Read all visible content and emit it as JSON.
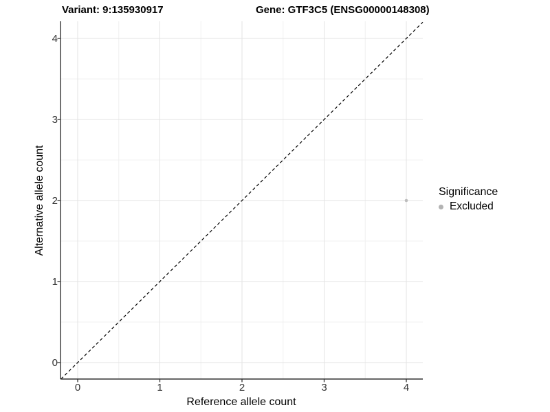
{
  "figure": {
    "title_variant": "Variant: 9:135930917",
    "title_gene": "Gene: GTF3C5 (ENSG00000148308)"
  },
  "legend": {
    "title": "Significance",
    "items": [
      {
        "label": "Excluded",
        "color": "#b3b3b3",
        "marker": "circle-icon"
      }
    ]
  },
  "chart_data": {
    "type": "scatter",
    "title": "Variant: 9:135930917 / Gene: GTF3C5 (ENSG00000148308)",
    "xlabel": "Reference allele count",
    "ylabel": "Alternative allele count",
    "xlim": [
      -0.21,
      4.21
    ],
    "ylim": [
      -0.2,
      4.2
    ],
    "x_ticks": [
      0,
      1,
      2,
      3,
      4
    ],
    "y_ticks": [
      0,
      1,
      2,
      3,
      4
    ],
    "grid": {
      "major": true,
      "minor": true,
      "major_color": "#e3e3e3",
      "minor_color": "#f0f0f0"
    },
    "axis_color": "#333333",
    "reference_line": {
      "type": "identity",
      "slope": 1,
      "intercept": 0,
      "style": "dashed",
      "color": "#000000"
    },
    "series": [
      {
        "name": "Excluded",
        "color": "#bdbdbd",
        "points": [
          {
            "x": 4,
            "y": 2
          }
        ]
      }
    ],
    "legend_position": "right"
  }
}
